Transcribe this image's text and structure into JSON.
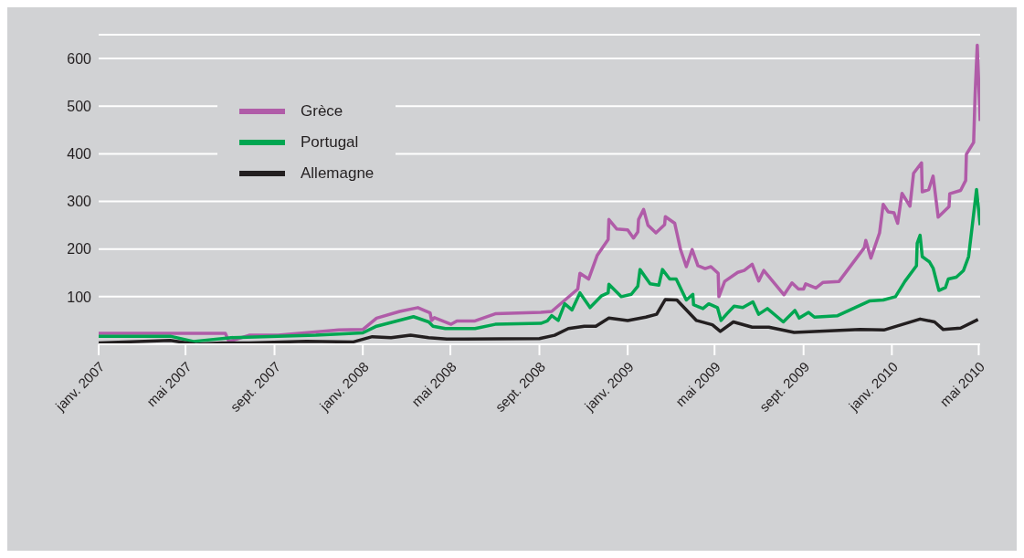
{
  "chart_data": {
    "type": "line",
    "legend": "top left",
    "grid": "y",
    "marker": "none",
    "line_style": "solid",
    "xlim": [
      "2007-01-01",
      "2010-05-03"
    ],
    "xticks": [
      {
        "value": "2007-01-01",
        "label": "janv. 2007"
      },
      {
        "value": "2007-05-01",
        "label": "mai 2007"
      },
      {
        "value": "2007-09-01",
        "label": "sept. 2007"
      },
      {
        "value": "2008-01-01",
        "label": "janv. 2008"
      },
      {
        "value": "2008-05-01",
        "label": "mai 2008"
      },
      {
        "value": "2008-09-01",
        "label": "sept. 2008"
      },
      {
        "value": "2009-01-01",
        "label": "janv. 2009"
      },
      {
        "value": "2009-05-01",
        "label": "mai 2009"
      },
      {
        "value": "2009-09-01",
        "label": "sept. 2009"
      },
      {
        "value": "2010-01-01",
        "label": "janv. 2010"
      },
      {
        "value": "2010-05-01",
        "label": "mai 2010"
      }
    ],
    "ylim": [
      0,
      650
    ],
    "yticks": [
      100,
      200,
      300,
      400,
      500,
      600
    ],
    "series": [
      {
        "name": "Grèce",
        "color": "#b05ca8",
        "x": [
          "2007-01-01",
          "2007-06-25",
          "2007-06-30",
          "2007-07-28",
          "2007-09-06",
          "2007-11-29",
          "2008-01-01",
          "2008-01-20",
          "2008-02-21",
          "2008-03-17",
          "2008-04-03",
          "2008-04-05",
          "2008-04-09",
          "2008-05-02",
          "2008-05-10",
          "2008-06-04",
          "2008-07-02",
          "2008-09-03",
          "2008-09-18",
          "2008-10-24",
          "2008-10-27",
          "2008-11-08",
          "2008-11-20",
          "2008-12-05",
          "2008-12-06",
          "2008-12-17",
          "2009-01-01",
          "2009-01-09",
          "2009-01-15",
          "2009-01-16",
          "2009-01-23",
          "2009-01-29",
          "2009-02-09",
          "2009-02-21",
          "2009-02-22",
          "2009-03-07",
          "2009-03-15",
          "2009-03-23",
          "2009-03-31",
          "2009-04-08",
          "2009-04-18",
          "2009-04-26",
          "2009-05-06",
          "2009-05-07",
          "2009-05-15",
          "2009-06-02",
          "2009-06-11",
          "2009-06-22",
          "2009-07-01",
          "2009-07-08",
          "2009-08-05",
          "2009-08-16",
          "2009-08-25",
          "2009-09-01",
          "2009-09-04",
          "2009-09-18",
          "2009-09-28",
          "2009-10-20",
          "2009-11-24",
          "2009-11-26",
          "2009-12-03",
          "2009-12-15",
          "2009-12-20",
          "2009-12-27",
          "2010-01-04",
          "2010-01-09",
          "2010-01-15",
          "2010-01-26",
          "2010-01-31",
          "2010-02-11",
          "2010-02-12",
          "2010-02-21",
          "2010-02-27",
          "2010-03-06",
          "2010-03-21",
          "2010-03-22",
          "2010-04-06",
          "2010-04-13",
          "2010-04-14",
          "2010-04-24",
          "2010-04-26",
          "2010-04-29",
          "2010-05-03"
        ],
        "values": [
          23,
          23,
          6,
          19,
          19,
          30,
          31,
          55,
          69,
          77,
          66,
          50,
          56,
          42,
          49,
          49,
          64,
          67,
          69,
          116,
          149,
          137,
          187,
          220,
          262,
          242,
          240,
          223,
          236,
          262,
          283,
          250,
          234,
          251,
          268,
          254,
          199,
          163,
          199,
          165,
          159,
          163,
          149,
          100,
          132,
          151,
          155,
          168,
          133,
          155,
          104,
          129,
          116,
          116,
          127,
          118,
          130,
          132,
          203,
          218,
          181,
          234,
          294,
          278,
          276,
          254,
          317,
          290,
          359,
          381,
          320,
          325,
          353,
          267,
          289,
          316,
          323,
          344,
          399,
          424,
          524,
          628,
          469
        ]
      },
      {
        "name": "Portugal",
        "color": "#00a651",
        "x": [
          "2007-01-01",
          "2007-04-10",
          "2007-05-12",
          "2007-07-03",
          "2007-10-28",
          "2008-01-01",
          "2008-01-20",
          "2008-03-11",
          "2008-04-01",
          "2008-04-07",
          "2008-04-24",
          "2008-06-04",
          "2008-07-02",
          "2008-09-03",
          "2008-09-12",
          "2008-09-18",
          "2008-09-27",
          "2008-10-06",
          "2008-10-16",
          "2008-10-27",
          "2008-11-10",
          "2008-11-26",
          "2008-12-05",
          "2008-12-06",
          "2008-12-23",
          "2009-01-06",
          "2009-01-15",
          "2009-01-18",
          "2009-02-01",
          "2009-02-13",
          "2009-02-18",
          "2009-02-28",
          "2009-03-09",
          "2009-03-23",
          "2009-04-01",
          "2009-04-02",
          "2009-04-15",
          "2009-04-23",
          "2009-05-05",
          "2009-05-10",
          "2009-05-18",
          "2009-05-28",
          "2009-06-09",
          "2009-06-23",
          "2009-07-01",
          "2009-07-13",
          "2009-08-04",
          "2009-08-20",
          "2009-08-26",
          "2009-09-08",
          "2009-09-16",
          "2009-10-18",
          "2009-12-01",
          "2009-12-20",
          "2010-01-06",
          "2010-01-19",
          "2010-02-04",
          "2010-02-05",
          "2010-02-09",
          "2010-02-12",
          "2010-02-22",
          "2010-02-27",
          "2010-03-07",
          "2010-03-16",
          "2010-03-20",
          "2010-03-31",
          "2010-04-10",
          "2010-04-17",
          "2010-04-21",
          "2010-04-28",
          "2010-05-03"
        ],
        "values": [
          17,
          17,
          6,
          14,
          19,
          24,
          38,
          58,
          47,
          38,
          33,
          33,
          42,
          44,
          49,
          60,
          50,
          85,
          72,
          108,
          77,
          102,
          108,
          126,
          100,
          105,
          122,
          157,
          127,
          124,
          157,
          137,
          137,
          93,
          105,
          83,
          75,
          85,
          77,
          50,
          64,
          80,
          77,
          89,
          63,
          75,
          47,
          71,
          55,
          67,
          57,
          60,
          91,
          93,
          100,
          132,
          165,
          212,
          229,
          184,
          173,
          160,
          113,
          119,
          137,
          141,
          155,
          184,
          235,
          325,
          250
        ]
      },
      {
        "name": "Allemagne",
        "color": "#231f20",
        "x": [
          "2007-01-01",
          "2007-04-10",
          "2007-05-15",
          "2007-06-20",
          "2007-07-28",
          "2007-10-15",
          "2007-12-19",
          "2008-01-14",
          "2008-02-09",
          "2008-03-07",
          "2008-04-01",
          "2008-04-26",
          "2008-09-01",
          "2008-09-22",
          "2008-10-11",
          "2008-11-02",
          "2008-11-18",
          "2008-12-06",
          "2009-01-01",
          "2009-01-26",
          "2009-02-10",
          "2009-02-22",
          "2009-03-10",
          "2009-04-06",
          "2009-04-28",
          "2009-05-09",
          "2009-05-27",
          "2009-06-22",
          "2009-07-15",
          "2009-08-19",
          "2009-11-18",
          "2009-12-21",
          "2010-02-09",
          "2010-03-01",
          "2010-03-13",
          "2010-04-06",
          "2010-04-30"
        ],
        "values": [
          3,
          8,
          0,
          3,
          3,
          6,
          5,
          16,
          14,
          19,
          14,
          11,
          12,
          19,
          33,
          38,
          38,
          55,
          50,
          57,
          63,
          94,
          93,
          50,
          41,
          27,
          47,
          36,
          36,
          25,
          31,
          30,
          53,
          47,
          31,
          34,
          52
        ]
      }
    ]
  }
}
